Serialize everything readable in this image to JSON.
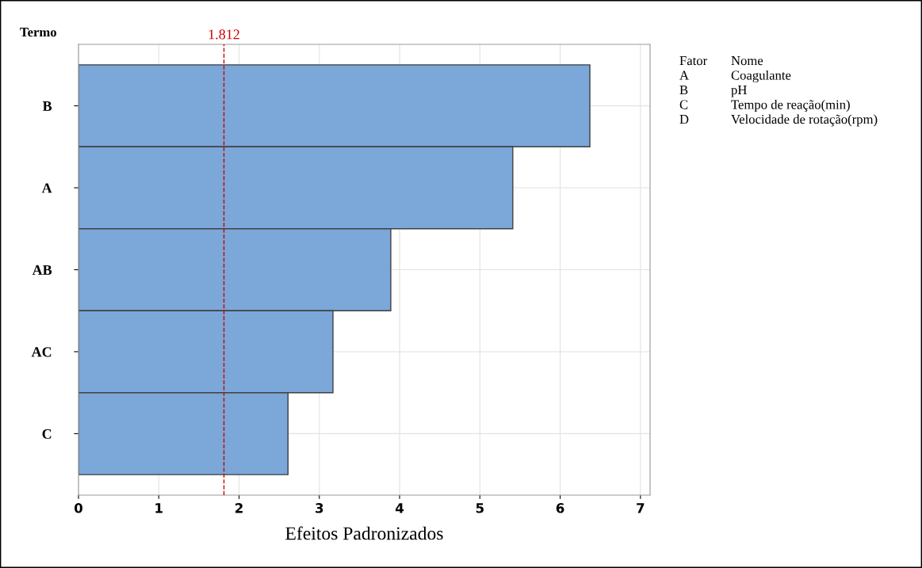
{
  "chart_data": {
    "type": "bar",
    "orientation": "horizontal",
    "ylabel": "Termo",
    "xlabel": "Efeitos Padronizados",
    "categories": [
      "B",
      "A",
      "AB",
      "AC",
      "C"
    ],
    "values": [
      6.37,
      5.41,
      3.89,
      3.17,
      2.61
    ],
    "color": "#7ba7d9",
    "xlim": [
      0,
      7.12
    ],
    "xticks": [
      0,
      1,
      2,
      3,
      4,
      5,
      6,
      7
    ],
    "grid": true,
    "ref_lines": [
      {
        "axis": "x",
        "value": 1.812,
        "label": "1.812",
        "color": "#cc0000",
        "line_style": "dashed"
      }
    ],
    "annotations": [
      "Fator",
      "Nome",
      "A",
      "Coagulante",
      "B",
      "pH",
      "C",
      "Tempo de reação(min)",
      "D",
      "Velocidade de rotação(rpm)"
    ]
  }
}
